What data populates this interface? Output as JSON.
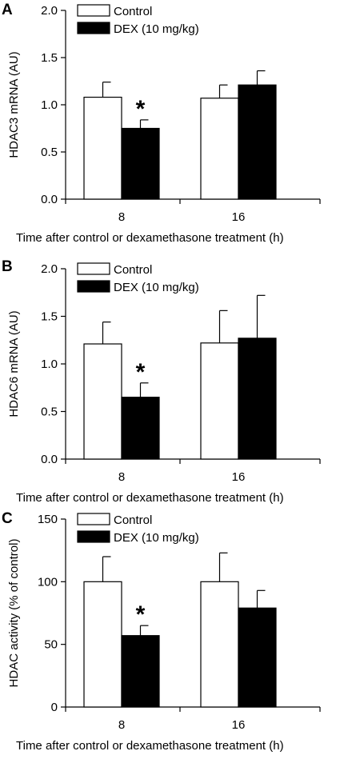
{
  "colors": {
    "control": "#ffffff",
    "dex": "#000000",
    "axis": "#000000"
  },
  "chart_data": [
    {
      "type": "bar",
      "panel": "A",
      "categories": [
        "8",
        "16"
      ],
      "series": [
        {
          "name": "Control",
          "values": [
            1.08,
            1.07
          ],
          "errors": [
            0.16,
            0.14
          ]
        },
        {
          "name": "DEX (10 mg/kg)",
          "values": [
            0.75,
            1.21
          ],
          "errors": [
            0.09,
            0.15
          ]
        }
      ],
      "xlabel": "Time after control or dexamethasone treatment (h)",
      "ylabel": "HDAC3 mRNA (AU)",
      "ylim": [
        0,
        2.0
      ],
      "yticks": [
        "0.0",
        "0.5",
        "1.0",
        "1.5",
        "2.0"
      ],
      "significance": [
        {
          "category": "8",
          "series": "DEX (10 mg/kg)",
          "marker": "*"
        }
      ],
      "legend": "top-left"
    },
    {
      "type": "bar",
      "panel": "B",
      "categories": [
        "8",
        "16"
      ],
      "series": [
        {
          "name": "Control",
          "values": [
            1.21,
            1.22
          ],
          "errors": [
            0.23,
            0.34
          ]
        },
        {
          "name": "DEX (10 mg/kg)",
          "values": [
            0.65,
            1.27
          ],
          "errors": [
            0.15,
            0.45
          ]
        }
      ],
      "xlabel": "Time after control or dexamethasone treatment (h)",
      "ylabel": "HDAC6 mRNA (AU)",
      "ylim": [
        0,
        2.0
      ],
      "yticks": [
        "0.0",
        "0.5",
        "1.0",
        "1.5",
        "2.0"
      ],
      "significance": [
        {
          "category": "8",
          "series": "DEX (10 mg/kg)",
          "marker": "*"
        }
      ],
      "legend": "top-left"
    },
    {
      "type": "bar",
      "panel": "C",
      "categories": [
        "8",
        "16"
      ],
      "series": [
        {
          "name": "Control",
          "values": [
            100,
            100
          ],
          "errors": [
            20,
            23
          ]
        },
        {
          "name": "DEX (10 mg/kg)",
          "values": [
            57,
            79
          ],
          "errors": [
            8,
            14
          ]
        }
      ],
      "xlabel": "Time after control or dexamethasone treatment (h)",
      "ylabel": "HDAC activity (% of control)",
      "ylim": [
        0,
        150
      ],
      "yticks": [
        "0",
        "50",
        "100",
        "150"
      ],
      "significance": [
        {
          "category": "8",
          "series": "DEX (10 mg/kg)",
          "marker": "*"
        }
      ],
      "legend": "top-left"
    }
  ]
}
